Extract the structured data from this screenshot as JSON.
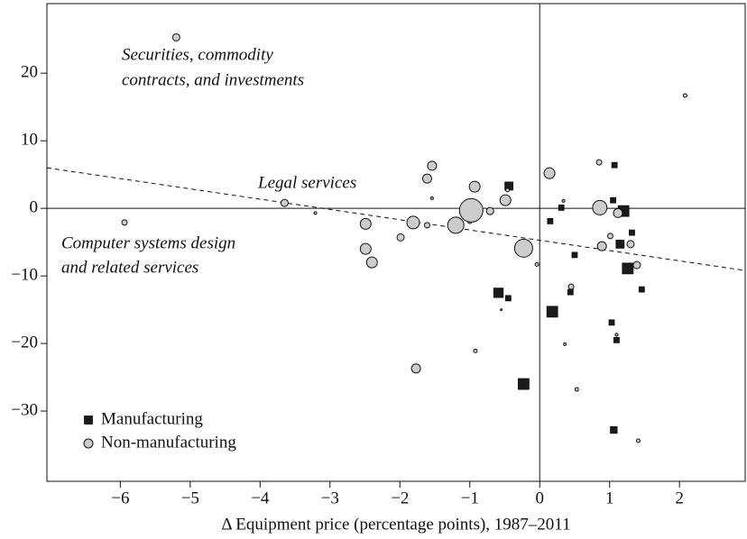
{
  "chart_data": {
    "type": "scatter",
    "x_label": "Δ Equipment price (percentage points), 1987–2011",
    "xlim": [
      -7.05,
      2.94
    ],
    "ylim": [
      -40.4,
      30.3
    ],
    "xticks": [
      {
        "value": -6,
        "label": "−6"
      },
      {
        "value": -5,
        "label": "−5"
      },
      {
        "value": -4,
        "label": "−4"
      },
      {
        "value": -3,
        "label": "−3"
      },
      {
        "value": -2,
        "label": "−2"
      },
      {
        "value": -1,
        "label": "−1"
      },
      0,
      1,
      2
    ],
    "yticks": [
      {
        "value": -30,
        "label": "−30"
      },
      {
        "value": -20,
        "label": "−20"
      },
      {
        "value": -10,
        "label": "−10"
      },
      0,
      10,
      20
    ],
    "hline": 0,
    "vline": 0,
    "annotations": [
      "Securities, commodity",
      "contracts, and investments",
      "Legal services",
      "Computer systems design",
      "and related services"
    ],
    "fit_line": {
      "x": [
        -7.05,
        2.94
      ],
      "y": [
        6.0,
        -9.2
      ]
    },
    "legend": "lower left",
    "series": [
      {
        "name": "Manufacturing",
        "marker": "square",
        "color": "#1a1a1a",
        "x": [
          -0.44,
          0.15,
          0.31,
          1.07,
          1.05,
          1.2,
          1.32,
          1.15,
          1.26,
          1.46,
          0.5,
          0.44,
          -0.59,
          -0.45,
          0.18,
          1.03,
          1.1,
          -0.23,
          1.06
        ],
        "values": [
          3.3,
          -1.9,
          0.1,
          6.4,
          1.2,
          -0.4,
          -3.6,
          -5.3,
          -8.9,
          -12.0,
          -6.9,
          -12.4,
          -12.5,
          -13.3,
          -15.3,
          -16.9,
          -19.5,
          -26.0,
          -32.8
        ],
        "sizes": [
          2,
          1,
          1,
          1,
          1,
          3,
          1,
          2,
          3,
          1,
          1,
          1,
          2.5,
          1,
          3,
          1,
          1,
          3,
          1.5
        ]
      },
      {
        "name": "Non-manufacturing",
        "marker": "circle",
        "color": "#cccccc",
        "x": [
          -5.2,
          -5.94,
          -3.65,
          -3.21,
          -2.49,
          -2.49,
          -2.4,
          -1.99,
          -1.81,
          -1.61,
          -1.61,
          -1.54,
          -1.54,
          -1.77,
          -1.2,
          -1.0,
          -0.98,
          -0.93,
          -0.71,
          -0.49,
          -0.46,
          -0.92,
          -0.55,
          -0.23,
          -0.04,
          0.14,
          0.34,
          0.36,
          0.45,
          0.53,
          0.85,
          0.86,
          0.89,
          1.01,
          1.1,
          1.12,
          1.3,
          1.39,
          1.41,
          2.08
        ],
        "values": [
          25.3,
          -2.1,
          0.8,
          -0.7,
          -2.3,
          -6.0,
          -8.0,
          -4.3,
          -2.1,
          -2.5,
          4.4,
          6.3,
          1.5,
          -23.7,
          -2.5,
          -2.0,
          -0.3,
          3.2,
          -0.4,
          1.2,
          2.7,
          -21.1,
          -15.0,
          -5.9,
          -8.3,
          5.2,
          1.1,
          -20.1,
          -11.6,
          -26.8,
          6.8,
          0.1,
          -5.6,
          -4.1,
          -18.7,
          -0.7,
          -5.3,
          -8.4,
          -34.4,
          16.7
        ],
        "sizes": [
          4,
          3,
          4,
          1.5,
          6,
          6,
          6,
          4,
          7,
          3,
          5,
          5,
          1.5,
          5,
          9,
          2,
          13,
          6,
          4,
          6,
          2,
          2,
          1,
          10,
          2,
          6,
          1.5,
          1.5,
          3,
          2,
          3,
          8,
          5,
          3,
          1.5,
          5,
          4,
          4,
          2,
          2
        ]
      }
    ]
  }
}
